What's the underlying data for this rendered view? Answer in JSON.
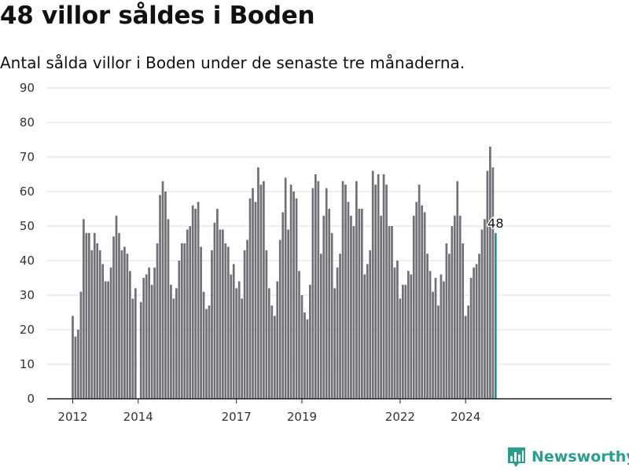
{
  "title": "48 villor såldes i Boden",
  "subtitle": "Antal sålda villor i Boden under de senaste tre månaderna.",
  "brand": {
    "name": "Newsworthy",
    "icon": "bar-chart-logo-icon",
    "color": "#2a9d8f"
  },
  "colors": {
    "bar": "#717077",
    "highlight": "#1a9a8e",
    "grid": "#dddddd",
    "axis": "#222222"
  },
  "chart_data": {
    "type": "bar",
    "title": "48 villor såldes i Boden",
    "subtitle": "Antal sålda villor i Boden under de senaste tre månaderna.",
    "xlabel": "",
    "ylabel": "",
    "ylim": [
      0,
      90
    ],
    "yticks": [
      0,
      10,
      20,
      30,
      40,
      50,
      60,
      70,
      80,
      90
    ],
    "x_start": "2012-01",
    "xticks": [
      {
        "label": "2012",
        "index": 0
      },
      {
        "label": "2014",
        "index": 24
      },
      {
        "label": "2017",
        "index": 60
      },
      {
        "label": "2019",
        "index": 84
      },
      {
        "label": "2022",
        "index": 120
      },
      {
        "label": "2024",
        "index": 144
      }
    ],
    "grid": true,
    "highlight_last": true,
    "last_label": "48",
    "values": [
      24,
      18,
      20,
      31,
      52,
      48,
      48,
      43,
      48,
      45,
      43,
      39,
      34,
      34,
      38,
      47,
      53,
      48,
      43,
      44,
      42,
      37,
      29,
      32,
      null,
      28,
      35,
      36,
      38,
      33,
      38,
      45,
      59,
      63,
      60,
      52,
      33,
      29,
      32,
      40,
      45,
      45,
      49,
      50,
      56,
      55,
      57,
      44,
      31,
      26,
      27,
      43,
      51,
      55,
      49,
      49,
      45,
      44,
      36,
      39,
      32,
      34,
      29,
      43,
      46,
      58,
      61,
      57,
      67,
      62,
      63,
      43,
      32,
      27,
      24,
      34,
      46,
      54,
      64,
      49,
      62,
      60,
      58,
      37,
      30,
      25,
      23,
      33,
      61,
      65,
      63,
      42,
      53,
      61,
      55,
      48,
      32,
      38,
      42,
      63,
      62,
      57,
      53,
      50,
      63,
      55,
      55,
      36,
      39,
      43,
      66,
      62,
      65,
      53,
      65,
      62,
      50,
      50,
      38,
      40,
      29,
      33,
      33,
      37,
      36,
      53,
      57,
      62,
      56,
      54,
      42,
      37,
      31,
      35,
      27,
      36,
      34,
      45,
      42,
      50,
      53,
      63,
      53,
      45,
      24,
      27,
      35,
      38,
      39,
      42,
      49,
      52,
      66,
      73,
      67,
      48
    ]
  }
}
